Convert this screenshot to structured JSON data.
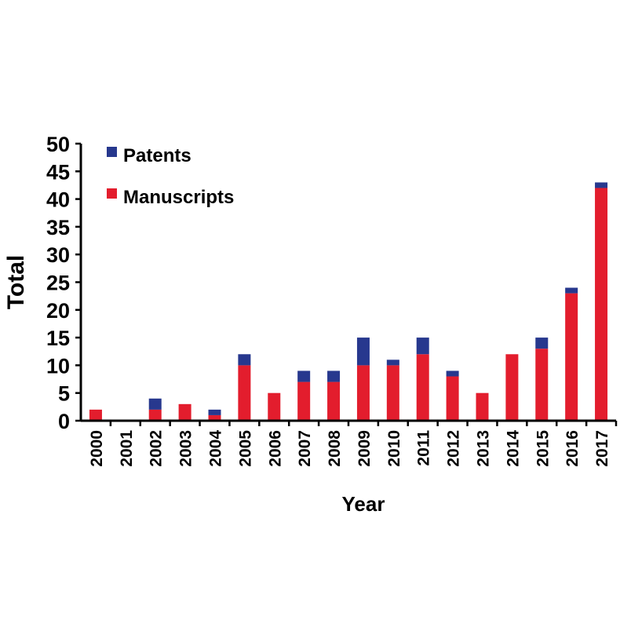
{
  "chart_data": {
    "type": "bar",
    "stacked": true,
    "xlabel": "Year",
    "ylabel": "Total",
    "ylim": [
      0,
      50
    ],
    "yticks": [
      0,
      5,
      10,
      15,
      20,
      25,
      30,
      35,
      40,
      45,
      50
    ],
    "categories": [
      "2000",
      "2001",
      "2002",
      "2003",
      "2004",
      "2005",
      "2006",
      "2007",
      "2008",
      "2009",
      "2010",
      "2011",
      "2012",
      "2013",
      "2014",
      "2015",
      "2016",
      "2017"
    ],
    "series": [
      {
        "name": "Manuscripts",
        "color": "#e31d2d",
        "values": [
          2,
          0,
          2,
          3,
          1,
          10,
          5,
          7,
          7,
          10,
          10,
          12,
          8,
          5,
          12,
          13,
          23,
          42
        ]
      },
      {
        "name": "Patents",
        "color": "#27388e",
        "values": [
          0,
          0,
          2,
          0,
          1,
          2,
          0,
          2,
          2,
          5,
          1,
          3,
          1,
          0,
          0,
          2,
          1,
          1
        ]
      }
    ],
    "legend": {
      "placement": "top-left",
      "order": [
        "Patents",
        "Manuscripts"
      ]
    },
    "grid": false
  }
}
